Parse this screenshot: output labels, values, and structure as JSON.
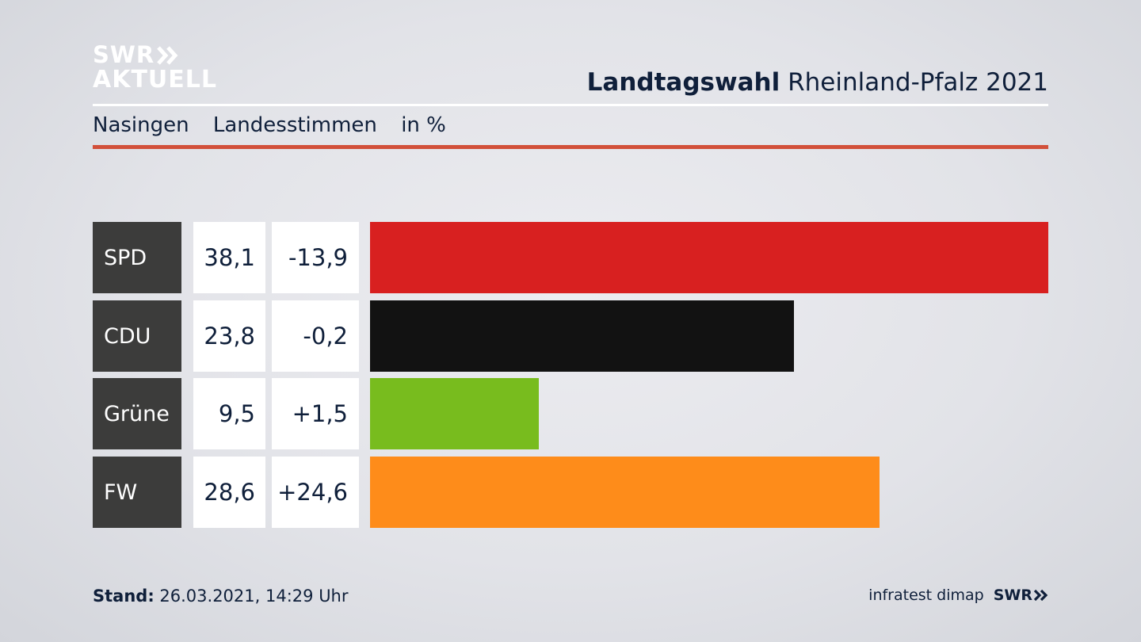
{
  "logo": {
    "line1": "SWR",
    "line2": "AKTUELL",
    "chevron_icon": "double-chevron-right-icon"
  },
  "header": {
    "title_bold": "Landtagswahl",
    "title_rest": "Rheinland-Pfalz 2021"
  },
  "subheader": {
    "place": "Nasingen",
    "type": "Landesstimmen",
    "unit": "in %"
  },
  "colors": {
    "accent_red_rule": "#d2503a",
    "party_cell": "#3c3c3b"
  },
  "chart_data": {
    "type": "bar",
    "categories": [
      "SPD",
      "CDU",
      "Grüne",
      "FW"
    ],
    "values": [
      38.1,
      23.8,
      9.5,
      28.6
    ],
    "value_labels": [
      "38,1",
      "23,8",
      "9,5",
      "28,6"
    ],
    "change_labels": [
      "-13,9",
      "-0,2",
      "+1,5",
      "+24,6"
    ],
    "changes": [
      -13.9,
      -0.2,
      1.5,
      24.6
    ],
    "colors": [
      "#d82020",
      "#121212",
      "#78bc1e",
      "#fe8c1a"
    ],
    "orientation": "horizontal"
  },
  "footer": {
    "stand_label": "Stand:",
    "stand_value": "26.03.2021, 14:29 Uhr",
    "source": "infratest dimap",
    "broadcaster": "SWR"
  }
}
